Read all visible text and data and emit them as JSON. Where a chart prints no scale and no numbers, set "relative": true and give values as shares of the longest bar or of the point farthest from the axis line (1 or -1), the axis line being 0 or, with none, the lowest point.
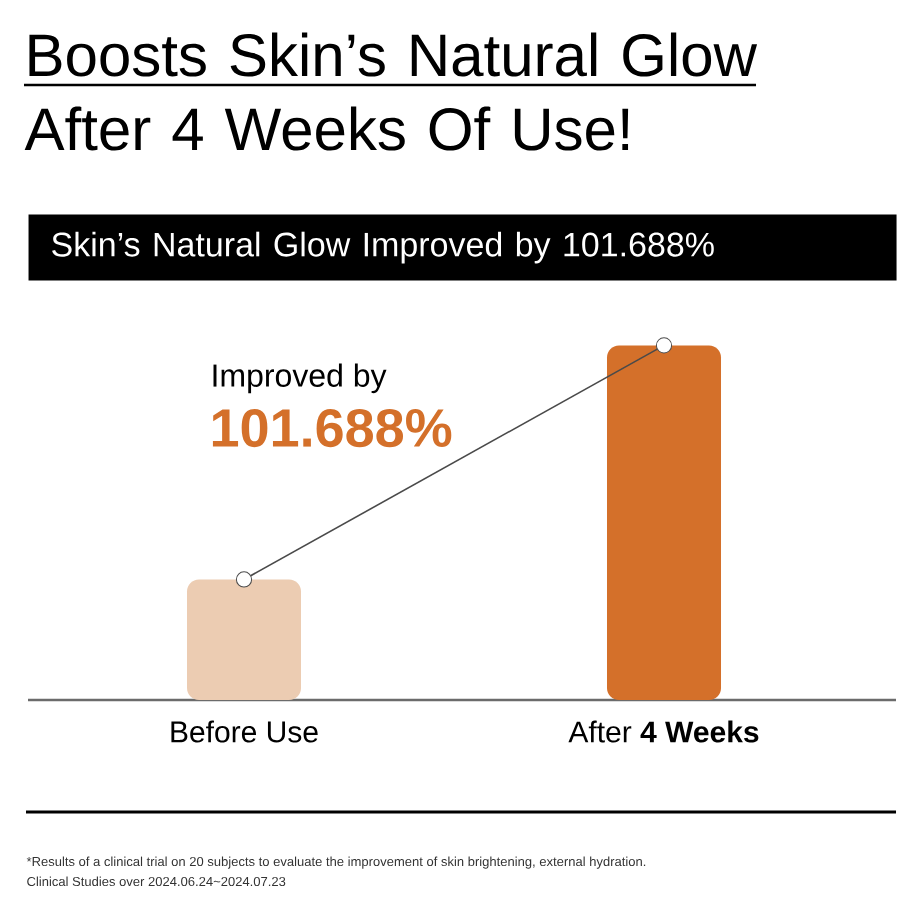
{
  "chart_data": {
    "type": "bar",
    "title": "Boosts Skin’s Natural Glow After 4 Weeks Of Use!",
    "subtitle": "Skin’s Natural Glow Improved by 101.688%",
    "categories": [
      "Before Use",
      "After **4 Weeks**"
    ],
    "relative": true,
    "series": [
      {
        "colors": [
          "#ecccb2",
          "#d4702a"
        ],
        "values": [
          0.34,
          1
        ]
      },
      {
        "type": "line",
        "color": "#4a4a4a",
        "marker": "circle",
        "values": [
          0.34,
          1
        ]
      }
    ],
    "annotations": [
      "Improved by",
      "101.688%",
      "*Results of a clinical trial on 20 subjects to evaluate the improvement of skin brightening, external hydration.",
      "Clinical Studies over 2024.06.24~2024.07.23"
    ]
  }
}
